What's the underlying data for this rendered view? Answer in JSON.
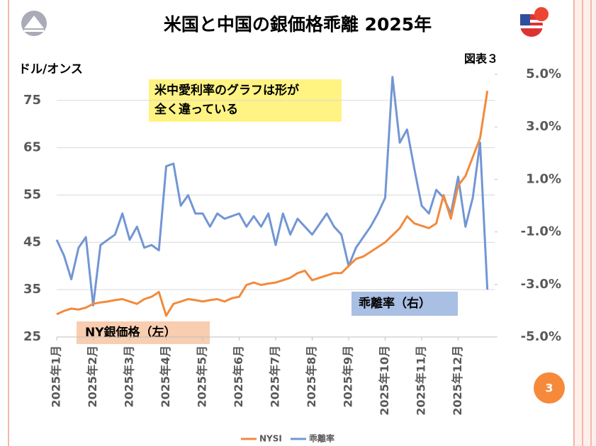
{
  "chart_data": {
    "type": "line",
    "title": "米国と中国の銀価格乖離 2025年",
    "figure_label": "図表３",
    "y_label": "ドル/オンス",
    "annotation": [
      "米中愛利率のグラフは形が",
      "全く違っている"
    ],
    "series_labels": [
      "NY銀価格（左）",
      "乖離率（右）"
    ],
    "page_number": "3",
    "categories": [
      "2025年1月",
      null,
      null,
      null,
      null,
      "2025年2月",
      null,
      null,
      null,
      null,
      "2025年3月",
      null,
      null,
      null,
      null,
      "2025年4月",
      null,
      null,
      null,
      null,
      "2025年5月",
      null,
      null,
      null,
      null,
      "2025年6月",
      null,
      null,
      null,
      null,
      "2025年7月",
      null,
      null,
      null,
      null,
      "2025年8月",
      null,
      null,
      null,
      null,
      "2025年9月",
      null,
      null,
      null,
      null,
      "2025年10月",
      null,
      null,
      null,
      null,
      "2025年11月",
      null,
      null,
      null,
      null,
      "2025年12月",
      null,
      null,
      null,
      null
    ],
    "series": [
      {
        "name": "NYSI",
        "color": "#f28a3c",
        "axis": "y",
        "values": [
          29.8,
          30.5,
          31.0,
          30.8,
          31.2,
          32.0,
          32.3,
          32.5,
          32.8,
          33.0,
          32.5,
          32.0,
          33.0,
          33.5,
          34.5,
          29.5,
          32.0,
          32.5,
          33.0,
          32.8,
          32.5,
          32.8,
          33.0,
          32.5,
          33.2,
          33.5,
          36.0,
          36.5,
          36.0,
          36.3,
          36.5,
          37.0,
          37.5,
          38.5,
          39.0,
          37.0,
          37.5,
          38.0,
          38.5,
          38.5,
          40.0,
          41.5,
          42.0,
          43.0,
          44.0,
          45.0,
          46.5,
          48.0,
          50.5,
          49.0,
          48.5,
          48.0,
          49.0,
          55.0,
          50.0,
          57.0,
          59.0,
          63.0,
          67.0,
          77.0
        ]
      },
      {
        "name": "乖離率",
        "color": "#7296d4",
        "axis": "y2",
        "values": [
          -1.3,
          -1.9,
          -2.8,
          -1.6,
          -1.2,
          -3.8,
          -1.5,
          -1.3,
          -1.1,
          -0.3,
          -1.3,
          -0.8,
          -1.6,
          -1.5,
          -1.7,
          1.5,
          1.6,
          0.0,
          0.4,
          -0.3,
          -0.3,
          -0.8,
          -0.3,
          -0.5,
          -0.4,
          -0.3,
          -0.8,
          -0.4,
          -0.8,
          -0.3,
          -1.5,
          -0.3,
          -1.1,
          -0.5,
          -0.8,
          -1.1,
          -0.7,
          -0.3,
          -0.8,
          -1.1,
          -2.3,
          -1.6,
          -1.2,
          -0.8,
          -0.3,
          0.3,
          4.9,
          2.4,
          2.9,
          1.4,
          0.0,
          -0.3,
          0.6,
          0.3,
          -0.3,
          1.1,
          -0.8,
          0.3,
          2.4,
          -3.2
        ]
      }
    ],
    "ylim": [
      25,
      80.5
    ],
    "yticks": [
      25,
      35,
      45,
      55,
      65,
      75
    ],
    "y2lim": [
      -5,
      5
    ],
    "y2ticks": [
      {
        "value": -5,
        "label": "-5.0%"
      },
      {
        "value": -3,
        "label": "-3.0%"
      },
      {
        "value": -1,
        "label": "-1.0%"
      },
      {
        "value": 1,
        "label": "1.0%"
      },
      {
        "value": 3,
        "label": "3.0%"
      },
      {
        "value": 5,
        "label": "5.0%"
      }
    ],
    "grid": true
  }
}
